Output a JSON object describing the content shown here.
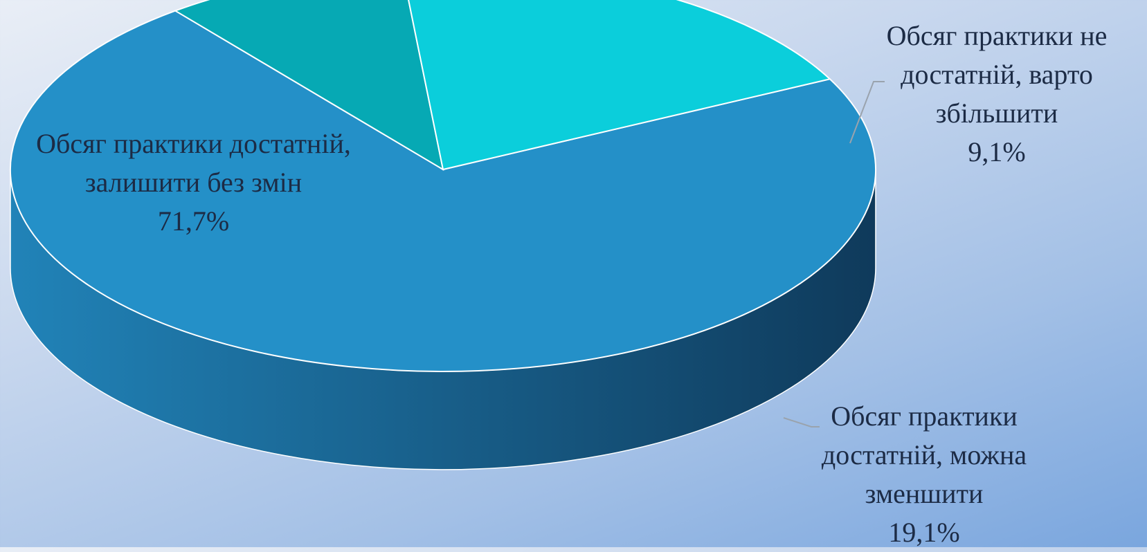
{
  "chart_data": {
    "type": "pie",
    "style": "3d",
    "slices": [
      {
        "label": "Обсяг практики достатній, залишити без змін",
        "value": 71.7,
        "value_label": "71,7%",
        "color": "#2490c8"
      },
      {
        "label": "Обсяг практики не достатній, варто збільшити",
        "value": 9.1,
        "value_label": "9,1%",
        "color": "#06a9b4"
      },
      {
        "label": "Обсяг практики достатній, можна зменшити",
        "value": 19.1,
        "value_label": "19,1%",
        "color": "#0bcedb"
      }
    ]
  }
}
